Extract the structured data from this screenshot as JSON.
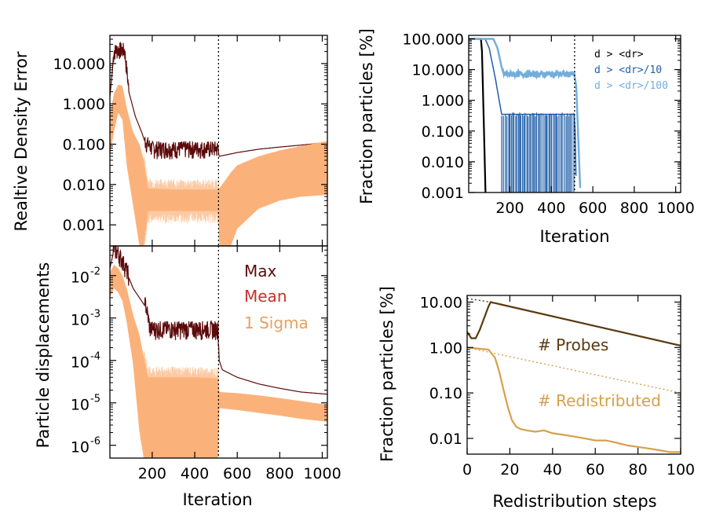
{
  "colors": {
    "max": "#5c0a0a",
    "mean": "#c8302a",
    "sigma": "#fbb27a",
    "dr1": "#000000",
    "dr10": "#1f5ea8",
    "dr100": "#72aedc",
    "probes": "#5a3a0f",
    "redistributed": "#d6a04c"
  },
  "chart_data": [
    {
      "id": "density",
      "type": "line",
      "scale": "log",
      "title": "",
      "ylabel": "Realtive Density Error",
      "xlim": [
        1,
        1024
      ],
      "ylim": [
        0.0003,
        50
      ],
      "yticks": [
        0.001,
        0.01,
        0.1,
        1,
        10
      ],
      "ytick_labels": [
        "0.001",
        "0.010",
        "0.100",
        "1.000",
        "10.000"
      ],
      "vline_x": 512,
      "series": [
        {
          "name": "Max",
          "x": [
            1,
            20,
            40,
            70,
            90,
            120,
            150,
            170,
            200,
            300,
            400,
            510,
            515,
            600,
            700,
            800,
            900,
            1024
          ],
          "values": [
            1.5,
            18,
            20,
            19,
            2.0,
            0.5,
            0.2,
            0.1,
            0.07,
            0.07,
            0.07,
            0.07,
            0.05,
            0.062,
            0.075,
            0.085,
            0.095,
            0.11
          ]
        },
        {
          "name": "Mean",
          "x": [
            1,
            20,
            40,
            60,
            80,
            110,
            140,
            160,
            180,
            300,
            400,
            510,
            515,
            600,
            700,
            800,
            900,
            1024
          ],
          "values": [
            0.2,
            0.9,
            1.7,
            1.5,
            0.3,
            0.06,
            0.03,
            0.012,
            0.0055,
            0.0045,
            0.0042,
            0.004,
            0.0035,
            0.008,
            0.013,
            0.018,
            0.024,
            0.03
          ]
        },
        {
          "name": "1 Sigma",
          "x": [
            1,
            20,
            40,
            60,
            80,
            110,
            140,
            160,
            180,
            300,
            400,
            510,
            515,
            540,
            570,
            600,
            700,
            800,
            900,
            1024
          ],
          "lower": [
            0.05,
            0.2,
            0.6,
            0.4,
            0.03,
            0.003,
            0.0003,
            0.0003,
            0.0022,
            0.0022,
            0.0022,
            0.0022,
            0.0003,
            0.0003,
            0.0003,
            0.0008,
            0.0025,
            0.004,
            0.005,
            0.0055
          ],
          "upper": [
            0.5,
            1.8,
            3.0,
            2.8,
            0.8,
            0.2,
            0.1,
            0.04,
            0.008,
            0.0075,
            0.0075,
            0.0075,
            0.008,
            0.012,
            0.02,
            0.03,
            0.05,
            0.07,
            0.09,
            0.12
          ]
        }
      ]
    },
    {
      "id": "displacement",
      "type": "line",
      "scale": "log",
      "ylabel": "Particle displacements",
      "xlabel": "Iteration",
      "xlim": [
        1,
        1024
      ],
      "ylim": [
        5e-07,
        0.05
      ],
      "xticks": [
        200,
        400,
        600,
        800,
        1000
      ],
      "xtick_labels": [
        "200",
        "400",
        "600",
        "800",
        "1000"
      ],
      "yticks": [
        1e-06,
        1e-05,
        0.0001,
        0.001,
        0.01
      ],
      "ytick_mantissa": [
        "10",
        "10",
        "10",
        "10",
        "10"
      ],
      "ytick_exponents": [
        "-6",
        "-5",
        "-4",
        "-3",
        "-2"
      ],
      "vline_x": 512,
      "legend": [
        "Max",
        "Mean",
        "1 Sigma"
      ],
      "series": [
        {
          "name": "Max",
          "x": [
            1,
            20,
            40,
            60,
            80,
            110,
            140,
            170,
            190,
            300,
            400,
            510,
            515,
            530,
            600,
            700,
            800,
            900,
            1024
          ],
          "values": [
            0.015,
            0.04,
            0.03,
            0.02,
            0.012,
            0.005,
            0.003,
            0.0018,
            0.0005,
            0.0005,
            0.0005,
            0.0005,
            0.0001,
            6e-05,
            4e-05,
            2.8e-05,
            2.2e-05,
            1.8e-05,
            1.6e-05
          ]
        },
        {
          "name": "Mean",
          "x": [
            1,
            20,
            40,
            60,
            80,
            110,
            140,
            160,
            180,
            300,
            400,
            510,
            515,
            600,
            700,
            800,
            900,
            1024
          ],
          "values": [
            0.007,
            0.011,
            0.009,
            0.006,
            0.003,
            0.0007,
            0.0002,
            6e-05,
            2e-05,
            2e-05,
            2e-05,
            1.9e-05,
            1.2e-05,
            1.1e-05,
            9.5e-06,
            8e-06,
            6.8e-06,
            5.8e-06
          ]
        },
        {
          "name": "1 Sigma",
          "x": [
            1,
            20,
            40,
            60,
            80,
            110,
            140,
            160,
            180,
            300,
            400,
            510,
            515,
            600,
            700,
            800,
            900,
            1024
          ],
          "lower": [
            0.003,
            0.005,
            0.004,
            0.0025,
            0.0008,
            8e-05,
            2e-06,
            5e-07,
            5e-07,
            5e-07,
            5e-07,
            5e-07,
            7.5e-06,
            6.8e-06,
            5.8e-06,
            5e-06,
            4.2e-06,
            3.6e-06
          ],
          "upper": [
            0.012,
            0.018,
            0.015,
            0.01,
            0.005,
            0.0012,
            0.0004,
            0.00012,
            4e-05,
            4e-05,
            4e-05,
            3.8e-05,
            1.8e-05,
            1.7e-05,
            1.5e-05,
            1.3e-05,
            1.1e-05,
            9e-06
          ]
        }
      ]
    },
    {
      "id": "fraction-iter",
      "type": "line",
      "scale": "log",
      "ylabel": "Fraction particles [%]",
      "xlabel": "Iteration",
      "xlim": [
        1,
        1024
      ],
      "ylim": [
        0.001,
        130
      ],
      "xticks": [
        200,
        400,
        600,
        800,
        1000
      ],
      "xtick_labels": [
        "200",
        "400",
        "600",
        "800",
        "1000"
      ],
      "yticks": [
        0.001,
        0.01,
        0.1,
        1,
        10,
        100
      ],
      "ytick_labels": [
        "0.001",
        "0.010",
        "0.100",
        "1.000",
        "10.000",
        "100.000"
      ],
      "vline_x": 512,
      "legend": [
        "d > <dr>",
        "d > <dr>/10",
        "d > <dr>/100"
      ],
      "series": [
        {
          "name": "d > <dr>",
          "x": [
            1,
            60,
            65,
            75,
            82
          ],
          "values": [
            100,
            100,
            40,
            0.1,
            0.001
          ]
        },
        {
          "name": "d > <dr>/10",
          "x": [
            1,
            80,
            100,
            130,
            145,
            160,
            170,
            510,
            515,
            520
          ],
          "values": [
            100,
            100,
            50,
            5,
            1.3,
            0.35,
            0.35,
            0.35,
            0.1,
            0.001
          ]
        },
        {
          "name": "d > <dr>/100",
          "x": [
            1,
            120,
            140,
            160,
            170,
            300,
            400,
            510,
            520,
            530,
            540
          ],
          "values": [
            100,
            100,
            50,
            12,
            7,
            7,
            7,
            7,
            3,
            0.05,
            0.001
          ]
        }
      ]
    },
    {
      "id": "fraction-redist",
      "type": "line",
      "scale": "log",
      "ylabel": "Fraction particles [%]",
      "xlabel": "Redistribution steps",
      "xlim": [
        0,
        100
      ],
      "ylim": [
        0.0045,
        14
      ],
      "xticks": [
        0,
        20,
        40,
        60,
        80,
        100
      ],
      "xtick_labels": [
        "0",
        "20",
        "40",
        "60",
        "80",
        "100"
      ],
      "yticks": [
        0.01,
        0.1,
        1,
        10
      ],
      "ytick_labels": [
        "0.01",
        "0.10",
        "1.00",
        "10.00"
      ],
      "annotations": [
        "# Probes",
        "# Redistributed"
      ],
      "series": [
        {
          "name": "# Probes",
          "x": [
            0,
            2,
            4,
            6,
            8,
            10,
            11,
            100
          ],
          "values": [
            2.2,
            1.6,
            1.6,
            2.5,
            4.5,
            8,
            10,
            1.1
          ]
        },
        {
          "name": "# Probes trend",
          "style": "dotted",
          "x": [
            0,
            11
          ],
          "values": [
            12,
            10
          ]
        },
        {
          "name": "# Redistributed",
          "x": [
            0,
            5,
            10,
            13,
            15,
            17,
            19,
            21,
            23,
            25,
            28,
            32,
            36,
            40,
            45,
            50,
            55,
            60,
            65,
            70,
            75,
            80,
            85,
            90,
            95,
            100
          ],
          "values": [
            1.0,
            0.95,
            0.9,
            0.6,
            0.3,
            0.12,
            0.05,
            0.025,
            0.018,
            0.016,
            0.015,
            0.014,
            0.015,
            0.013,
            0.012,
            0.011,
            0.01,
            0.009,
            0.009,
            0.008,
            0.007,
            0.0065,
            0.006,
            0.0055,
            0.005,
            0.005
          ]
        },
        {
          "name": "# Redistributed trend",
          "style": "dotted",
          "x": [
            0,
            100
          ],
          "values": [
            1.0,
            0.1
          ]
        }
      ]
    }
  ]
}
